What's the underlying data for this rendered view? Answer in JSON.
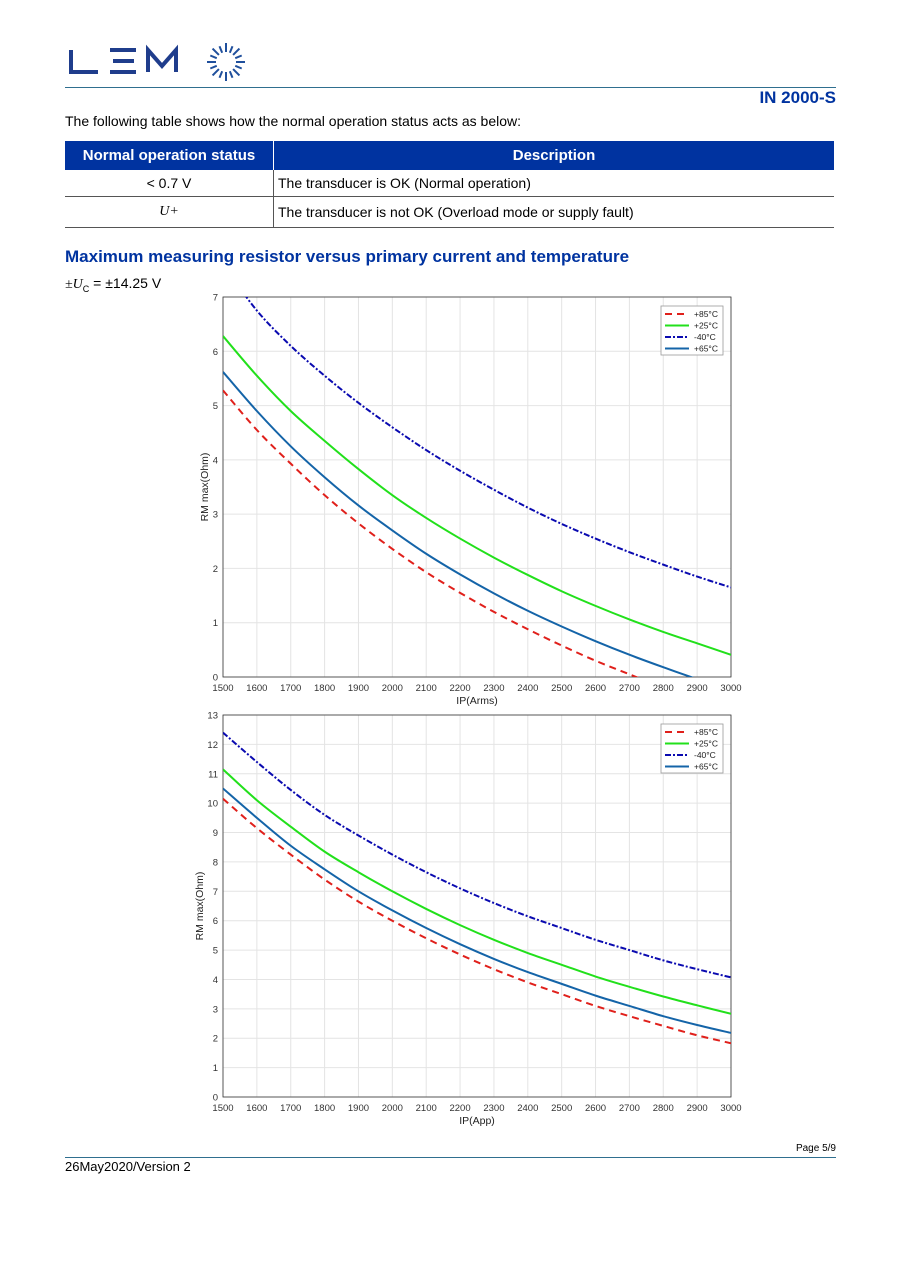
{
  "header": {
    "logo_text": "LEM",
    "doc_id": "IN 2000-S"
  },
  "intro": "The following table shows how the normal operation status acts as below:",
  "table": {
    "headers": [
      "Normal operation status",
      "Description"
    ],
    "rows": [
      {
        "status": "< 0.7 V",
        "desc": "The transducer is OK (Normal operation)"
      },
      {
        "status": "U+",
        "desc": "The transducer is not OK (Overload mode or supply fault)"
      }
    ]
  },
  "section_title": "Maximum measuring resistor versus primary current and temperature",
  "supply": {
    "prefix": "±U",
    "sub": "C",
    "value": " = ±14.25 V"
  },
  "chart_data": [
    {
      "type": "line",
      "xlabel": "IP(Arms)",
      "ylabel": "RM max(Ohm)",
      "xlim": [
        1500,
        3000
      ],
      "ylim": [
        0,
        7
      ],
      "grid": true,
      "legend": "top-right",
      "xticks": [
        1500,
        1600,
        1700,
        1800,
        1900,
        2000,
        2100,
        2200,
        2300,
        2400,
        2500,
        2600,
        2700,
        2800,
        2900,
        3000
      ],
      "yticks": [
        0,
        1,
        2,
        3,
        4,
        5,
        6,
        7
      ],
      "x": [
        1500,
        1600,
        1700,
        1800,
        1900,
        2000,
        2100,
        2200,
        2300,
        2400,
        2500,
        2600,
        2700,
        2800,
        2900,
        3000
      ],
      "series": [
        {
          "name": "+85°C",
          "color": "#e0201b",
          "style": "dash",
          "values": [
            5.28,
            4.55,
            3.93,
            3.35,
            2.83,
            2.36,
            1.93,
            1.55,
            1.2,
            0.88,
            0.58,
            0.3,
            0.05,
            -0.2,
            null,
            null
          ]
        },
        {
          "name": "+25°C",
          "color": "#22e01b",
          "style": "solid",
          "values": [
            6.28,
            5.55,
            4.9,
            4.35,
            3.83,
            3.35,
            2.93,
            2.55,
            2.2,
            1.88,
            1.58,
            1.31,
            1.06,
            0.83,
            0.62,
            0.41
          ]
        },
        {
          "name": "-40°C",
          "color": "#0a0ab0",
          "style": "dashdot",
          "values": [
            7.6,
            6.75,
            6.1,
            5.55,
            5.05,
            4.6,
            4.18,
            3.8,
            3.45,
            3.12,
            2.82,
            2.55,
            2.3,
            2.07,
            1.85,
            1.65
          ]
        },
        {
          "name": "+65°C",
          "color": "#1464a8",
          "style": "solid",
          "values": [
            5.62,
            4.9,
            4.25,
            3.68,
            3.16,
            2.7,
            2.27,
            1.89,
            1.54,
            1.22,
            0.93,
            0.66,
            0.41,
            0.18,
            -0.04,
            null
          ]
        }
      ]
    },
    {
      "type": "line",
      "xlabel": "IP(App)",
      "ylabel": "RM max(Ohm)",
      "xlim": [
        1500,
        3000
      ],
      "ylim": [
        0,
        13
      ],
      "grid": true,
      "legend": "top-right",
      "xticks": [
        1500,
        1600,
        1700,
        1800,
        1900,
        2000,
        2100,
        2200,
        2300,
        2400,
        2500,
        2600,
        2700,
        2800,
        2900,
        3000
      ],
      "yticks": [
        0,
        1,
        2,
        3,
        4,
        5,
        6,
        7,
        8,
        9,
        10,
        11,
        12,
        13
      ],
      "x": [
        1500,
        1600,
        1700,
        1800,
        1900,
        2000,
        2100,
        2200,
        2300,
        2400,
        2500,
        2600,
        2700,
        2800,
        2900,
        3000
      ],
      "series": [
        {
          "name": "+85°C",
          "color": "#e0201b",
          "style": "dash",
          "values": [
            10.15,
            9.15,
            8.25,
            7.4,
            6.65,
            6.0,
            5.4,
            4.85,
            4.35,
            3.9,
            3.5,
            3.1,
            2.75,
            2.42,
            2.1,
            1.83
          ]
        },
        {
          "name": "+25°C",
          "color": "#22e01b",
          "style": "solid",
          "values": [
            11.15,
            10.1,
            9.2,
            8.35,
            7.65,
            7.0,
            6.4,
            5.85,
            5.35,
            4.9,
            4.5,
            4.1,
            3.75,
            3.42,
            3.12,
            2.83
          ]
        },
        {
          "name": "-40°C",
          "color": "#0a0ab0",
          "style": "dashdot",
          "values": [
            12.4,
            11.4,
            10.45,
            9.6,
            8.9,
            8.25,
            7.65,
            7.1,
            6.6,
            6.15,
            5.75,
            5.35,
            5.0,
            4.65,
            4.35,
            4.07
          ]
        },
        {
          "name": "+65°C",
          "color": "#1464a8",
          "style": "solid",
          "values": [
            10.5,
            9.5,
            8.55,
            7.75,
            7.0,
            6.35,
            5.75,
            5.2,
            4.7,
            4.25,
            3.85,
            3.45,
            3.1,
            2.75,
            2.45,
            2.18
          ]
        }
      ]
    }
  ],
  "footer": {
    "page": "Page 5/9",
    "version": "26May2020/Version 2"
  }
}
